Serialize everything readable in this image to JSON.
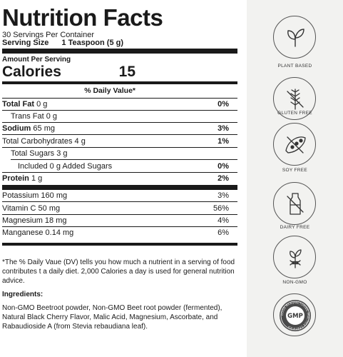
{
  "facts": {
    "title": "Nutrition Facts",
    "servings_per_container": "30 Servings Per Container",
    "serving_size_label": "Serving Size",
    "serving_size_value": "1 Teaspoon (5 g)",
    "amount_per_serving": "Amount Per Serving",
    "calories_label": "Calories",
    "calories_value": "15",
    "daily_value_header": "% Daily Value*"
  },
  "nutrients": [
    {
      "label": "Total Fat",
      "amount": "0 g",
      "dv": "0%"
    },
    {
      "label": "Trans Fat",
      "amount": "0 g",
      "dv": ""
    },
    {
      "label": "Sodium",
      "amount": "65 mg",
      "dv": "3%"
    },
    {
      "label": "Total Carbohydrates",
      "amount": "4 g",
      "dv": "1%"
    },
    {
      "label": "Total Sugars",
      "amount": "3 g",
      "dv": ""
    },
    {
      "label": "Included 0 g Added Sugars",
      "amount": "",
      "dv": "0%"
    },
    {
      "label": "Protein",
      "amount": "1 g",
      "dv": "2%"
    }
  ],
  "vitamins": [
    {
      "label": "Potassium 160 mg",
      "dv": "3%"
    },
    {
      "label": "Vitamin C 50 mg",
      "dv": "56%"
    },
    {
      "label": "Magnesium 18 mg",
      "dv": "4%"
    },
    {
      "label": "Manganese 0.14 mg",
      "dv": "6%"
    }
  ],
  "footnote": "*The % Daily Vaue (DV) tells you how much a nutrient in a serving of food contributes t a daily diet. 2,000 Calories a day is used for general nutrition advice.",
  "ingredients_label": "Ingredients:",
  "ingredients_text": "Non-GMO Beetroot powder, Non-GMO Beet root powder (fermented), Natural Black Cherry Flavor, Malic Acid, Magnesium, Ascorbate, and Rabaudioside A (from Stevia rebaudiana leaf).",
  "badges": [
    {
      "icon": "plant-icon",
      "label": "PLANT BASED"
    },
    {
      "icon": "wheat-crossed-icon",
      "label": "GLUTEN FREE"
    },
    {
      "icon": "soybean-crossed-icon",
      "label": "SOY FREE"
    },
    {
      "icon": "milk-bottle-crossed-icon",
      "label": "DAIRY FREE"
    },
    {
      "icon": "dna-plant-icon",
      "label": "NON-GMO"
    },
    {
      "icon": "gmp-seal-icon",
      "label": "GMP",
      "seal_text": "GOOD MANUFACTURING PRACTICE CERTIFIED"
    }
  ],
  "colors": {
    "ink": "#1a1a1a",
    "sidebar": "#f2f2f0",
    "badge_line": "#555555"
  }
}
